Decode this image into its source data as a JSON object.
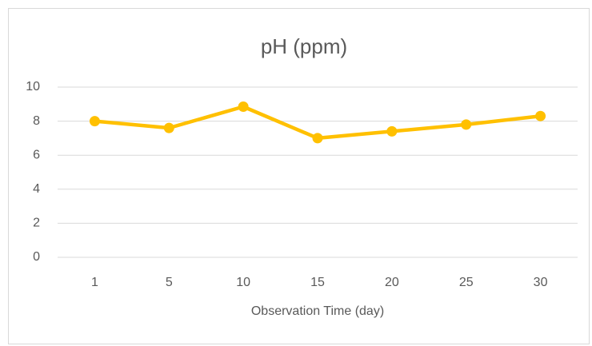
{
  "chart_data": {
    "type": "line",
    "title": "pH (ppm)",
    "x_label": "Observation Time (day)",
    "categories": [
      "1",
      "5",
      "10",
      "15",
      "20",
      "25",
      "30"
    ],
    "series": [
      {
        "name": "pH (ppm)",
        "color": "#FFC000",
        "values": [
          8.0,
          7.6,
          8.85,
          7.0,
          7.4,
          7.8,
          8.3
        ]
      }
    ],
    "ylim": [
      0,
      10
    ],
    "yticks": [
      0,
      2,
      4,
      6,
      8,
      10
    ],
    "grid": true
  }
}
